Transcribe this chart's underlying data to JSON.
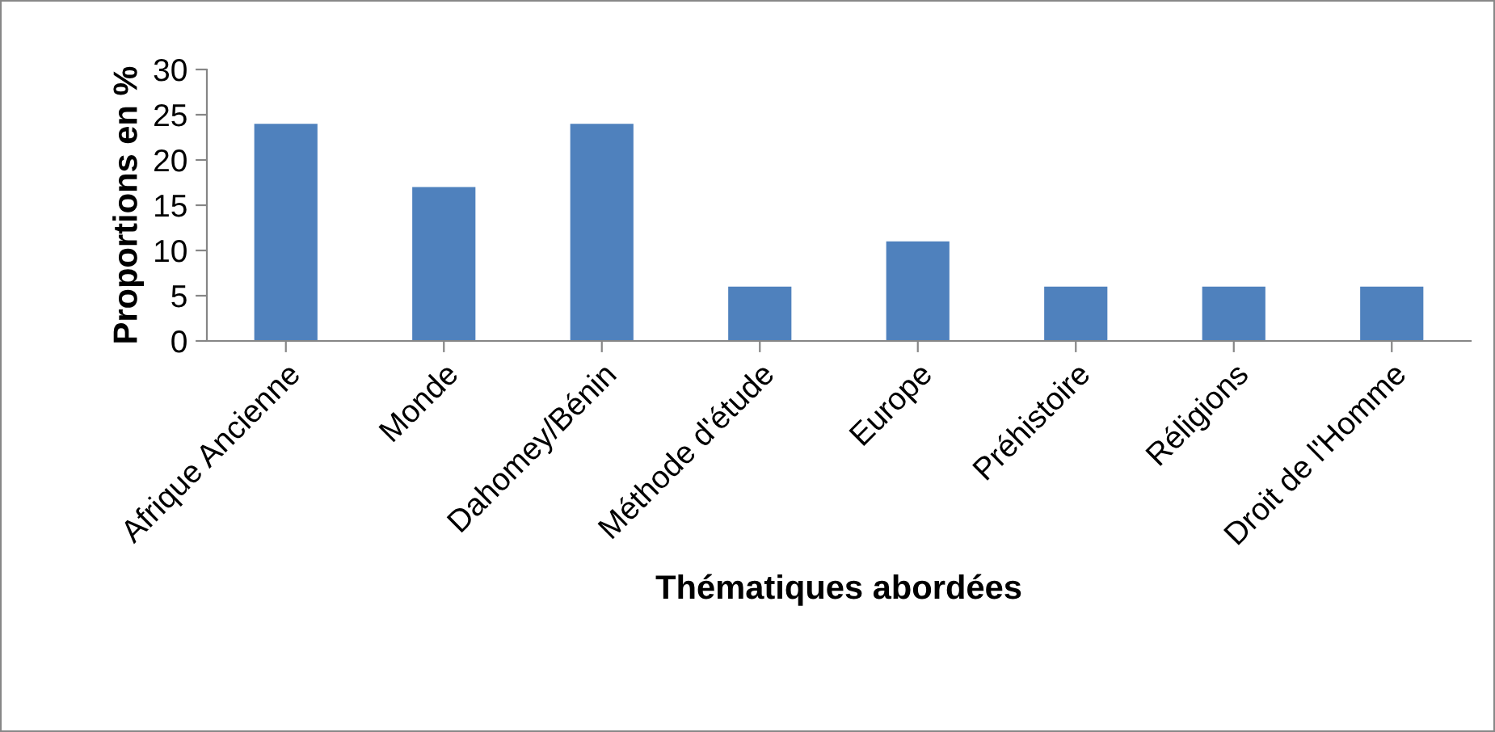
{
  "chart_data": {
    "type": "bar",
    "xlabel": "Thématiques abordées",
    "ylabel": "Proportions en %",
    "categories": [
      "Afrique Ancienne",
      "Monde",
      "Dahomey/Bénin",
      "Méthode d'étude",
      "Europe",
      "Préhistoire",
      "Réligions",
      "Droit de l'Homme"
    ],
    "values": [
      24,
      17,
      24,
      6,
      11,
      6,
      6,
      6
    ],
    "color": "#4f81bd",
    "ylim": [
      0,
      30
    ],
    "yticks": [
      0,
      5,
      10,
      15,
      20,
      25,
      30
    ],
    "grid": false,
    "legend": false
  }
}
